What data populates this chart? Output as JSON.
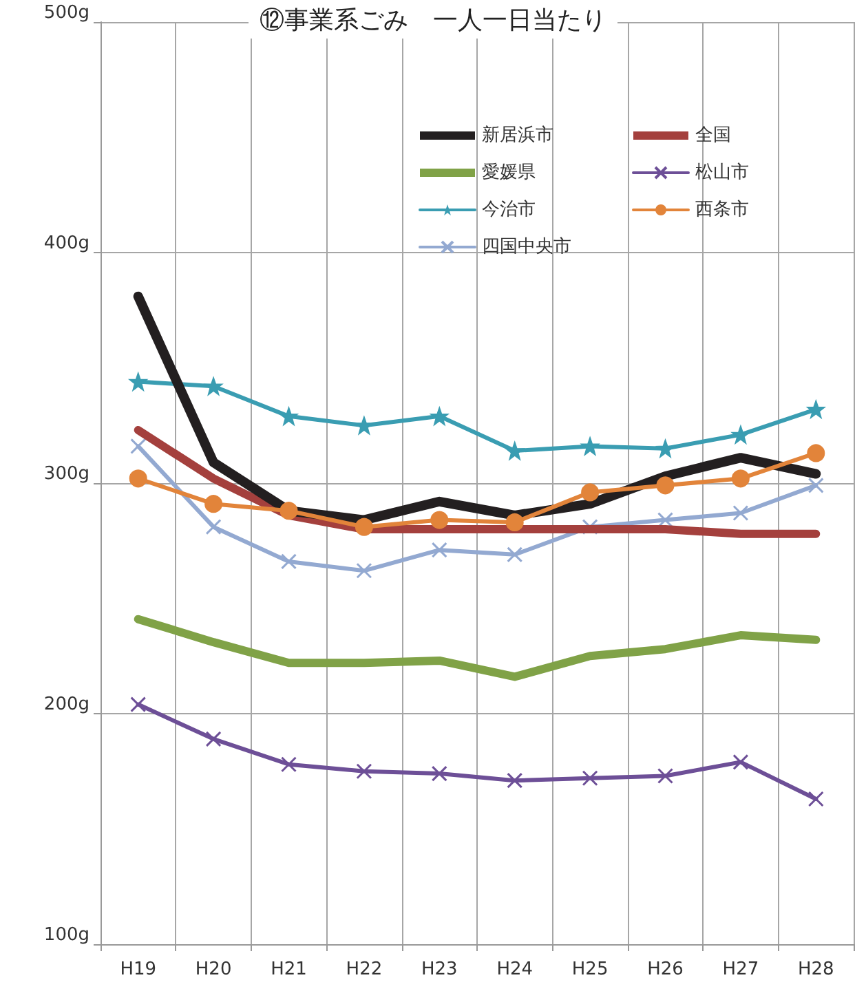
{
  "chart_data": {
    "type": "line",
    "title": "⑫事業系ごみ　一人一日当たり",
    "categories": [
      "H19",
      "H20",
      "H21",
      "H22",
      "H23",
      "H24",
      "H25",
      "H26",
      "H27",
      "H28"
    ],
    "series": [
      {
        "name": "新居浜市",
        "color": "#231f20",
        "marker": "none",
        "values": [
          381,
          309,
          288,
          284,
          292,
          286,
          291,
          303,
          311,
          304
        ]
      },
      {
        "name": "全国",
        "color": "#a4403d",
        "marker": "none",
        "values": [
          323,
          302,
          286,
          280,
          280,
          280,
          280,
          280,
          278,
          278
        ]
      },
      {
        "name": "愛媛県",
        "color": "#80a247",
        "marker": "none",
        "values": [
          241,
          231,
          222,
          222,
          223,
          216,
          225,
          228,
          234,
          232
        ]
      },
      {
        "name": "松山市",
        "color": "#6d4f97",
        "marker": "cross",
        "values": [
          204,
          189,
          178,
          175,
          174,
          171,
          172,
          173,
          179,
          163
        ]
      },
      {
        "name": "今治市",
        "color": "#3a9db2",
        "marker": "star",
        "values": [
          344,
          342,
          329,
          325,
          329,
          314,
          316,
          315,
          321,
          332
        ]
      },
      {
        "name": "西条市",
        "color": "#e2843a",
        "marker": "circle",
        "values": [
          302,
          291,
          288,
          281,
          284,
          283,
          296,
          299,
          302,
          313
        ]
      },
      {
        "name": "四国中央市",
        "color": "#93a9d1",
        "marker": "cross",
        "values": [
          316,
          281,
          266,
          262,
          271,
          269,
          281,
          284,
          287,
          299
        ]
      }
    ],
    "ylim": [
      100,
      500
    ],
    "yticks": [
      {
        "value": 100,
        "label": "100g"
      },
      {
        "value": 200,
        "label": "200g"
      },
      {
        "value": 300,
        "label": "300g"
      },
      {
        "value": 400,
        "label": "400g"
      },
      {
        "value": 500,
        "label": "500g"
      }
    ],
    "grid": true,
    "legend": "top right",
    "line_style": "solid"
  }
}
